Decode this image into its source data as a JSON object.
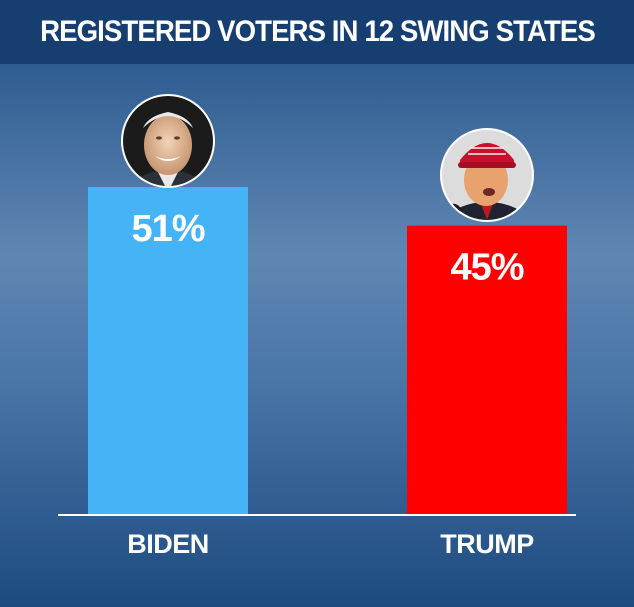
{
  "header": {
    "title": "REGISTERED VOTERS IN 12 SWING STATES"
  },
  "chart_data": {
    "type": "bar",
    "title": "REGISTERED VOTERS IN 12 SWING STATES",
    "categories": [
      "BIDEN",
      "TRUMP"
    ],
    "values": [
      51,
      45
    ],
    "value_labels": [
      "51%",
      "45%"
    ],
    "colors": [
      "#44b4f7",
      "#fd0000"
    ],
    "portraits": [
      "biden-portrait",
      "trump-portrait"
    ],
    "xlabel": "",
    "ylabel": "",
    "grid": false,
    "legend": "none"
  }
}
